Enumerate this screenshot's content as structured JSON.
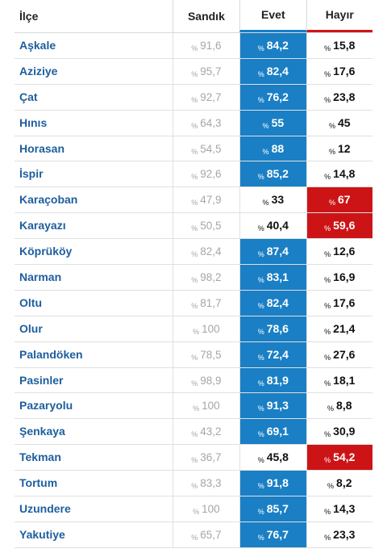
{
  "header": {
    "district": "İlçe",
    "ballot": "Sandık",
    "yes": "Evet",
    "no": "Hayır"
  },
  "percent_symbol": "%",
  "colors": {
    "yes_accent": "#1a7fc4",
    "no_accent": "#cc1417",
    "district_text": "#1d5e9e"
  },
  "rows": [
    {
      "district": "Aşkale",
      "ballot": "91,6",
      "yes": "84,2",
      "no": "15,8",
      "winner": "yes"
    },
    {
      "district": "Aziziye",
      "ballot": "95,7",
      "yes": "82,4",
      "no": "17,6",
      "winner": "yes"
    },
    {
      "district": "Çat",
      "ballot": "92,7",
      "yes": "76,2",
      "no": "23,8",
      "winner": "yes"
    },
    {
      "district": "Hınıs",
      "ballot": "64,3",
      "yes": "55",
      "no": "45",
      "winner": "yes"
    },
    {
      "district": "Horasan",
      "ballot": "54,5",
      "yes": "88",
      "no": "12",
      "winner": "yes"
    },
    {
      "district": "İspir",
      "ballot": "92,6",
      "yes": "85,2",
      "no": "14,8",
      "winner": "yes"
    },
    {
      "district": "Karaçoban",
      "ballot": "47,9",
      "yes": "33",
      "no": "67",
      "winner": "no"
    },
    {
      "district": "Karayazı",
      "ballot": "50,5",
      "yes": "40,4",
      "no": "59,6",
      "winner": "no"
    },
    {
      "district": "Köprüköy",
      "ballot": "82,4",
      "yes": "87,4",
      "no": "12,6",
      "winner": "yes"
    },
    {
      "district": "Narman",
      "ballot": "98,2",
      "yes": "83,1",
      "no": "16,9",
      "winner": "yes"
    },
    {
      "district": "Oltu",
      "ballot": "81,7",
      "yes": "82,4",
      "no": "17,6",
      "winner": "yes"
    },
    {
      "district": "Olur",
      "ballot": "100",
      "yes": "78,6",
      "no": "21,4",
      "winner": "yes"
    },
    {
      "district": "Palandöken",
      "ballot": "78,5",
      "yes": "72,4",
      "no": "27,6",
      "winner": "yes"
    },
    {
      "district": "Pasinler",
      "ballot": "98,9",
      "yes": "81,9",
      "no": "18,1",
      "winner": "yes"
    },
    {
      "district": "Pazaryolu",
      "ballot": "100",
      "yes": "91,3",
      "no": "8,8",
      "winner": "yes"
    },
    {
      "district": "Şenkaya",
      "ballot": "43,2",
      "yes": "69,1",
      "no": "30,9",
      "winner": "yes"
    },
    {
      "district": "Tekman",
      "ballot": "36,7",
      "yes": "45,8",
      "no": "54,2",
      "winner": "no"
    },
    {
      "district": "Tortum",
      "ballot": "83,3",
      "yes": "91,8",
      "no": "8,2",
      "winner": "yes"
    },
    {
      "district": "Uzundere",
      "ballot": "100",
      "yes": "85,7",
      "no": "14,3",
      "winner": "yes"
    },
    {
      "district": "Yakutiye",
      "ballot": "65,7",
      "yes": "76,7",
      "no": "23,3",
      "winner": "yes"
    }
  ]
}
